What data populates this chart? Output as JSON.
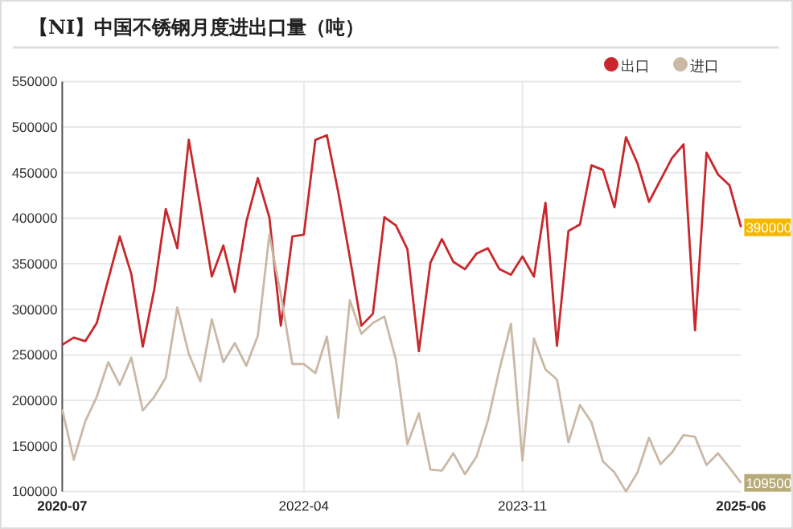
{
  "chart_data": {
    "type": "line",
    "title": "【NI】中国不锈钢月度进出口量（吨）",
    "legend": "top right",
    "grid": true,
    "marker": "none",
    "x": [
      "2020-07",
      "2020-08",
      "2020-09",
      "2020-10",
      "2020-11",
      "2020-12",
      "2021-01",
      "2021-02",
      "2021-03",
      "2021-04",
      "2021-05",
      "2021-06",
      "2021-07",
      "2021-08",
      "2021-09",
      "2021-10",
      "2021-11",
      "2021-12",
      "2022-01",
      "2022-02",
      "2022-03",
      "2022-04",
      "2022-05",
      "2022-06",
      "2022-07",
      "2022-08",
      "2022-09",
      "2022-10",
      "2022-11",
      "2022-12",
      "2023-01",
      "2023-02",
      "2023-03",
      "2023-04",
      "2023-05",
      "2023-06",
      "2023-07",
      "2023-08",
      "2023-09",
      "2023-10",
      "2023-11",
      "2023-12",
      "2024-01",
      "2024-02",
      "2024-03",
      "2024-04",
      "2024-05",
      "2024-06",
      "2024-07",
      "2024-08",
      "2024-09",
      "2024-10",
      "2024-11",
      "2024-12",
      "2025-01",
      "2025-02",
      "2025-03",
      "2025-04",
      "2025-05",
      "2025-06"
    ],
    "xlim": [
      "2020-07",
      "2025-06"
    ],
    "xticks": [
      "2020-07",
      "2022-04",
      "2023-11",
      "2025-06"
    ],
    "ylim": [
      100000,
      550000
    ],
    "yticks": [
      100000,
      150000,
      200000,
      250000,
      300000,
      350000,
      400000,
      450000,
      500000,
      550000
    ],
    "series": [
      {
        "name": "出口",
        "color": "#c8282c",
        "values": [
          261000,
          269000,
          265000,
          285000,
          333000,
          380000,
          339000,
          259000,
          322000,
          410000,
          367000,
          486000,
          413000,
          336000,
          370000,
          319000,
          396000,
          444000,
          401000,
          282000,
          380000,
          382000,
          486000,
          491000,
          428000,
          357000,
          282000,
          295000,
          401000,
          392000,
          366000,
          254000,
          351000,
          377000,
          352000,
          344000,
          361000,
          367000,
          344000,
          338000,
          358000,
          336000,
          417000,
          260000,
          386000,
          393000,
          458000,
          453000,
          412000,
          489000,
          460000,
          418000,
          442000,
          466000,
          481000,
          277000,
          472000,
          448000,
          436000,
          390000
        ]
      },
      {
        "name": "进口",
        "color": "#c9b9a5",
        "values": [
          190000,
          135000,
          177000,
          204000,
          242000,
          217000,
          247000,
          189000,
          204000,
          225000,
          302000,
          251000,
          221000,
          289000,
          242000,
          263000,
          238000,
          271000,
          382000,
          316000,
          240000,
          240000,
          230000,
          270000,
          181000,
          310000,
          273000,
          285000,
          292000,
          245000,
          152000,
          186000,
          124000,
          123000,
          142000,
          119000,
          138000,
          178000,
          234000,
          284000,
          134000,
          268000,
          234000,
          223000,
          154000,
          195000,
          176000,
          133000,
          121000,
          100000,
          121000,
          159000,
          130000,
          143000,
          162000,
          160000,
          129000,
          142000,
          126000,
          109500
        ]
      }
    ],
    "annotations": [
      {
        "text": "390000",
        "x": "2025-06",
        "y": 390000
      },
      {
        "text": "109500",
        "x": "2025-06",
        "y": 109500
      }
    ]
  }
}
